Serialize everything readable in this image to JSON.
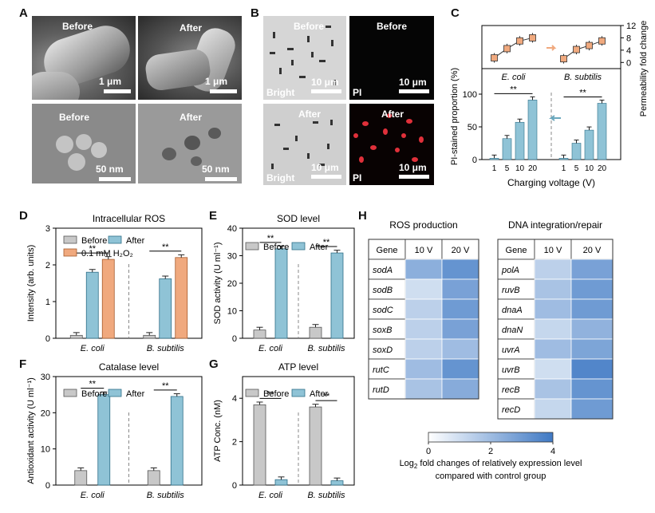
{
  "panels": {
    "A": "A",
    "B": "B",
    "C": "C",
    "D": "D",
    "E": "E",
    "F": "F",
    "G": "G",
    "H": "H"
  },
  "panelA": {
    "tiles": [
      {
        "label": "Before",
        "scale": "1 μm"
      },
      {
        "label": "After",
        "scale": "1 μm"
      },
      {
        "label": "Before",
        "scale": "50 nm"
      },
      {
        "label": "After",
        "scale": "50 nm"
      }
    ]
  },
  "panelB": {
    "tiles": [
      {
        "label": "Before",
        "corner": "Bright",
        "scale": "10 μm"
      },
      {
        "label": "Before",
        "corner": "PI",
        "scale": "10 μm"
      },
      {
        "label": "After",
        "corner": "Bright",
        "scale": "10 μm"
      },
      {
        "label": "After",
        "corner": "PI",
        "scale": "10 μm"
      }
    ]
  },
  "colors": {
    "before": "#c8c8c8",
    "after": "#8fc3d6",
    "h2o2": "#f0a97e",
    "heat_low": "#ffffff",
    "heat_high": "#3f79c4"
  },
  "chart_data": [
    {
      "panel": "C",
      "type": "bar",
      "ylabel": "PI-stained proportion (%)",
      "y2label": "Permeability fold change",
      "xlabel": "Charging voltage (V)",
      "ylim": [
        0,
        100
      ],
      "y2lim": [
        -2,
        12
      ],
      "yticks": [
        "0",
        "50",
        "100"
      ],
      "y2ticks": [
        "0",
        "4",
        "8",
        "12"
      ],
      "groups": [
        {
          "name": "E. coli",
          "categories": [
            "1",
            "5",
            "10",
            "20"
          ],
          "values": [
            2,
            32,
            57,
            91
          ],
          "fold": [
            1.5,
            4.5,
            7,
            8
          ],
          "sig": "**"
        },
        {
          "name": "B. subtilis",
          "categories": [
            "1",
            "5",
            "10",
            "20"
          ],
          "values": [
            2,
            25,
            45,
            86
          ],
          "fold": [
            1.2,
            4.2,
            5.5,
            7
          ],
          "sig": "**"
        }
      ]
    },
    {
      "panel": "D",
      "type": "bar",
      "title": "Intracellular ROS",
      "ylabel": "Intensity (arb. units)",
      "ylim": [
        0,
        3
      ],
      "yticks": [
        "0",
        "1",
        "2",
        "3"
      ],
      "legend": [
        "Before",
        "After",
        "0.1 mM H₂O₂"
      ],
      "categories": [
        "E. coli",
        "B. subtilis"
      ],
      "series": [
        {
          "name": "Before",
          "values": [
            0.08,
            0.08
          ]
        },
        {
          "name": "After",
          "values": [
            1.8,
            1.62
          ]
        },
        {
          "name": "0.1 mM H₂O₂",
          "values": [
            2.15,
            2.2
          ]
        }
      ],
      "sig": "**"
    },
    {
      "panel": "E",
      "type": "bar",
      "title": "SOD level",
      "ylabel": "SOD activity (U ml⁻¹)",
      "ylim": [
        0,
        40
      ],
      "yticks": [
        "0",
        "10",
        "20",
        "30",
        "40"
      ],
      "legend": [
        "Before",
        "After"
      ],
      "categories": [
        "E. coli",
        "B. subtilis"
      ],
      "series": [
        {
          "name": "Before",
          "values": [
            3,
            4
          ]
        },
        {
          "name": "After",
          "values": [
            32.5,
            31
          ]
        }
      ],
      "sig": "**"
    },
    {
      "panel": "F",
      "type": "bar",
      "title": "Catalase level",
      "ylabel": "Antioxidant activity (U ml⁻¹)",
      "ylim": [
        0,
        30
      ],
      "yticks": [
        "0",
        "10",
        "20",
        "30"
      ],
      "legend": [
        "Before",
        "After"
      ],
      "categories": [
        "E. coli",
        "B. subtilis"
      ],
      "series": [
        {
          "name": "Before",
          "values": [
            4,
            4
          ]
        },
        {
          "name": "After",
          "values": [
            25,
            24.5
          ]
        }
      ],
      "sig": "**"
    },
    {
      "panel": "G",
      "type": "bar",
      "title": "ATP level",
      "ylabel": "ATP Conc. (nM)",
      "ylim": [
        0,
        5
      ],
      "yticks": [
        "0",
        "2",
        "4"
      ],
      "legend": [
        "Before",
        "After"
      ],
      "categories": [
        "E. coli",
        "B. subtilis"
      ],
      "series": [
        {
          "name": "Before",
          "values": [
            3.7,
            3.6
          ]
        },
        {
          "name": "After",
          "values": [
            0.25,
            0.2
          ]
        }
      ],
      "sig": "**"
    },
    {
      "panel": "H",
      "type": "heatmap",
      "tables": [
        {
          "title": "ROS production",
          "header": [
            "Gene",
            "10 V",
            "20 V"
          ],
          "genes": [
            "sodA",
            "sodB",
            "sodC",
            "soxB",
            "soxD",
            "rutC",
            "rutD"
          ],
          "values": [
            [
              2.4,
              3.2
            ],
            [
              1.0,
              2.8
            ],
            [
              1.4,
              3.0
            ],
            [
              1.4,
              2.8
            ],
            [
              1.4,
              2.0
            ],
            [
              2.0,
              3.2
            ],
            [
              1.8,
              2.5
            ]
          ]
        },
        {
          "title": "DNA integration/repair",
          "header": [
            "Gene",
            "10 V",
            "20 V"
          ],
          "genes": [
            "polA",
            "ruvB",
            "dnaA",
            "dnaN",
            "uvrA",
            "uvrB",
            "recB",
            "recD"
          ],
          "values": [
            [
              1.4,
              2.8
            ],
            [
              1.8,
              3.0
            ],
            [
              2.0,
              3.0
            ],
            [
              1.2,
              2.3
            ],
            [
              2.0,
              2.7
            ],
            [
              1.0,
              3.6
            ],
            [
              1.8,
              3.2
            ],
            [
              1.2,
              3.0
            ]
          ]
        }
      ],
      "colorbar": {
        "ticks": [
          "0",
          "2",
          "4"
        ],
        "range": [
          0,
          4
        ],
        "caption1": "Log",
        "caption_sub": "2",
        "caption1b": " fold changes of relatively expression level",
        "caption2": "compared with control group"
      }
    }
  ]
}
